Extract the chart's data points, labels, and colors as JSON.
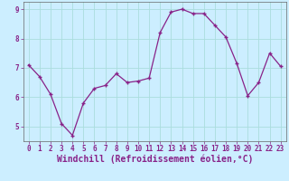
{
  "x": [
    0,
    1,
    2,
    3,
    4,
    5,
    6,
    7,
    8,
    9,
    10,
    11,
    12,
    13,
    14,
    15,
    16,
    17,
    18,
    19,
    20,
    21,
    22,
    23
  ],
  "y": [
    7.1,
    6.7,
    6.1,
    5.1,
    4.7,
    5.8,
    6.3,
    6.4,
    6.8,
    6.5,
    6.55,
    6.65,
    8.2,
    8.9,
    9.0,
    8.85,
    8.85,
    8.45,
    8.05,
    7.15,
    6.05,
    6.5,
    7.5,
    7.05
  ],
  "line_color": "#882288",
  "marker": "+",
  "xlabel": "Windchill (Refroidissement éolien,°C)",
  "ylabel": "",
  "title": "",
  "bg_color": "#cceeff",
  "grid_color": "#aadddd",
  "xlim": [
    -0.5,
    23.5
  ],
  "ylim": [
    4.5,
    9.25
  ],
  "yticks": [
    5,
    6,
    7,
    8,
    9
  ],
  "xticks": [
    0,
    1,
    2,
    3,
    4,
    5,
    6,
    7,
    8,
    9,
    10,
    11,
    12,
    13,
    14,
    15,
    16,
    17,
    18,
    19,
    20,
    21,
    22,
    23
  ],
  "tick_fontsize": 5.5,
  "xlabel_fontsize": 7,
  "tick_color": "#882288",
  "spine_color": "#666666"
}
